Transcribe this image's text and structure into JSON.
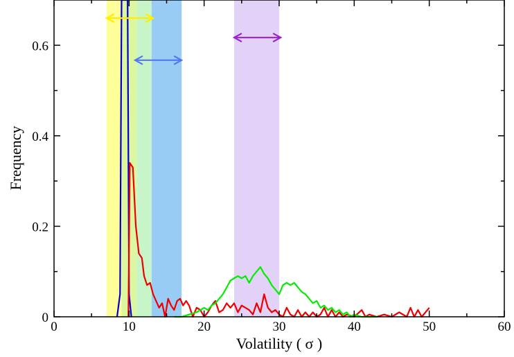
{
  "chart_data": {
    "type": "line",
    "xlabel": "Volatility ( σ )",
    "ylabel": "Frequency",
    "xlim": [
      0,
      60
    ],
    "ylim": [
      0,
      0.7
    ],
    "x_ticks": [
      "0",
      "10",
      "20",
      "30",
      "40",
      "50",
      "60"
    ],
    "y_ticks": [
      "0",
      "0.2",
      "0.4",
      "0.6"
    ],
    "grid": false,
    "bands": [
      {
        "x0": 7.0,
        "x1": 9.0,
        "color": "#ffff99"
      },
      {
        "x0": 9.0,
        "x1": 11.0,
        "color": "#ddf7a0"
      },
      {
        "x0": 11.0,
        "x1": 13.0,
        "color": "#c8f5c8"
      },
      {
        "x0": 13.0,
        "x1": 17.0,
        "color": "#99ccf5"
      },
      {
        "x0": 24.0,
        "x1": 30.0,
        "color": "#e2d2f7"
      }
    ],
    "arrows": [
      {
        "x0": 7.0,
        "x1": 13.2,
        "y": 0.66,
        "color": "#ffee00"
      },
      {
        "x0": 10.8,
        "x1": 17.0,
        "y": 0.567,
        "color": "#5577ee"
      },
      {
        "x0": 24.0,
        "x1": 30.2,
        "y": 0.617,
        "color": "#9922cc"
      }
    ],
    "series": [
      {
        "color": "#0000cc",
        "x": [
          8.4,
          8.8,
          9.0,
          9.2,
          9.5,
          9.8,
          10.0,
          10.3
        ],
        "y": [
          0.0,
          0.05,
          0.7,
          0.7,
          0.7,
          0.7,
          0.05,
          0.0
        ]
      },
      {
        "color": "#ee0000",
        "x": [
          9.9,
          10.1,
          10.5,
          10.9,
          11.3,
          11.7,
          12.0,
          12.4,
          12.8,
          13.2,
          13.6,
          14.0,
          14.4,
          14.8,
          15.2,
          15.6,
          16.0,
          16.4,
          16.8,
          17.2,
          17.6,
          18.0,
          18.5,
          19.0,
          19.5,
          20.0,
          20.5,
          21.0,
          21.5,
          22.0,
          22.5,
          23.0,
          23.5,
          24.0,
          24.5,
          25.0,
          25.5,
          26.0,
          26.5,
          27.0,
          27.5,
          28.0,
          28.5,
          29.0,
          29.5,
          30.0,
          30.5,
          31.0,
          31.5,
          32.0,
          32.5,
          33.0,
          33.5,
          34.0,
          34.5,
          35.0,
          35.5,
          36.0,
          36.5,
          37.0,
          37.5,
          38.0,
          38.5,
          39.0,
          40.0,
          41.0,
          41.5,
          42.0,
          43.0,
          44.0,
          45.0,
          46.0,
          47.0,
          47.5,
          48.0,
          48.5,
          49.0,
          50.0
        ],
        "y": [
          0.0,
          0.34,
          0.33,
          0.2,
          0.14,
          0.13,
          0.09,
          0.07,
          0.075,
          0.05,
          0.035,
          0.02,
          0.03,
          0.0,
          0.04,
          0.025,
          0.015,
          0.035,
          0.04,
          0.025,
          0.035,
          0.025,
          0.0,
          0.02,
          0.015,
          0.0,
          0.01,
          0.025,
          0.035,
          0.01,
          0.015,
          0.03,
          0.02,
          0.03,
          0.01,
          0.025,
          0.02,
          0.015,
          0.005,
          0.03,
          0.01,
          0.05,
          0.02,
          0.01,
          0.015,
          0.005,
          0.0,
          0.02,
          0.005,
          0.0,
          0.015,
          0.0,
          0.01,
          0.0,
          0.01,
          0.0,
          0.005,
          0.02,
          0.0,
          0.015,
          0.0,
          0.01,
          0.0,
          0.005,
          0.0,
          0.015,
          0.0,
          0.005,
          0.0,
          0.005,
          0.0,
          0.01,
          0.0,
          0.02,
          0.0,
          0.015,
          0.0,
          0.02
        ]
      },
      {
        "color": "#00ee00",
        "x": [
          16.0,
          17.0,
          18.0,
          19.0,
          20.0,
          20.5,
          21.0,
          21.5,
          22.0,
          22.5,
          23.0,
          23.5,
          24.0,
          24.5,
          25.0,
          25.5,
          26.0,
          26.5,
          27.0,
          27.5,
          28.0,
          28.5,
          29.0,
          29.5,
          30.0,
          30.5,
          31.0,
          31.5,
          32.0,
          32.5,
          33.0,
          33.5,
          34.0,
          34.5,
          35.0,
          35.5,
          36.0,
          36.5,
          37.0,
          37.5,
          38.0,
          38.5,
          39.0,
          39.5,
          40.0,
          41.0,
          42.0,
          43.0
        ],
        "y": [
          0.0,
          0.0,
          0.005,
          0.01,
          0.02,
          0.015,
          0.025,
          0.03,
          0.04,
          0.05,
          0.065,
          0.08,
          0.085,
          0.09,
          0.085,
          0.09,
          0.075,
          0.09,
          0.1,
          0.11,
          0.095,
          0.085,
          0.07,
          0.06,
          0.05,
          0.07,
          0.075,
          0.07,
          0.075,
          0.065,
          0.055,
          0.05,
          0.04,
          0.03,
          0.035,
          0.02,
          0.025,
          0.015,
          0.02,
          0.01,
          0.015,
          0.005,
          0.01,
          0.0,
          0.005,
          0.0,
          0.0,
          0.0
        ]
      }
    ]
  }
}
